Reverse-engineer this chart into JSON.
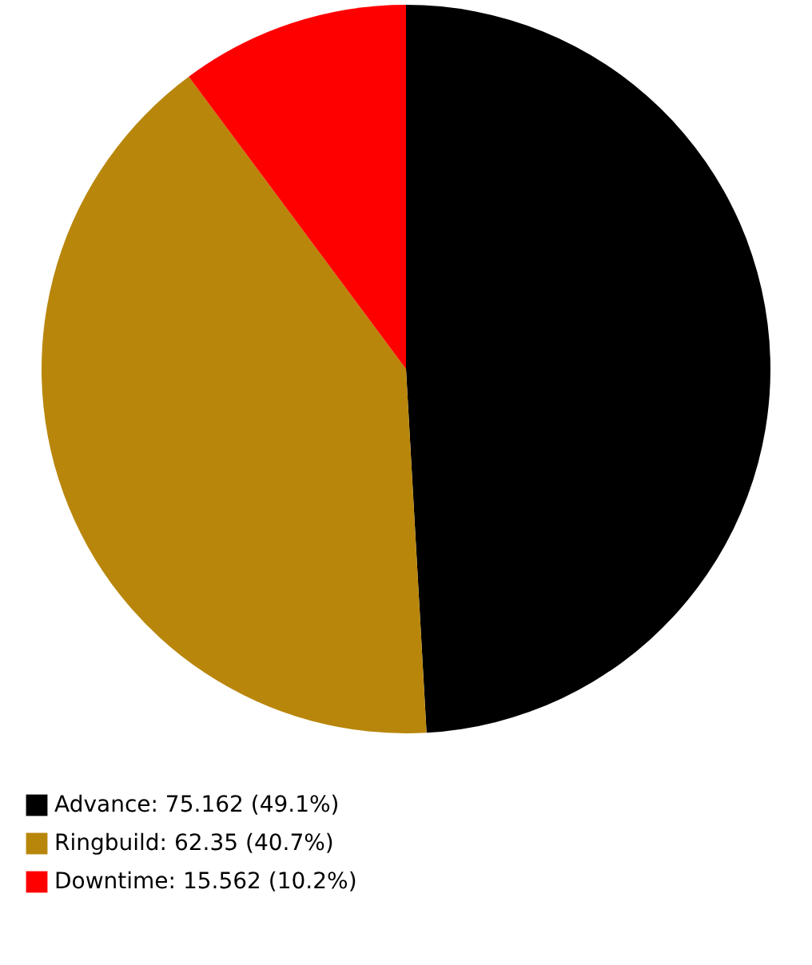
{
  "chart_data": {
    "type": "pie",
    "categories": [
      "Advance",
      "Ringbuild",
      "Downtime"
    ],
    "values": [
      75.162,
      62.35,
      15.562
    ],
    "value_labels": [
      "75.162 (49.1%)",
      "62.35 (40.7%)",
      "15.562 (10.2%)"
    ],
    "colors": [
      "#000000",
      "#b8860b",
      "#ff0000"
    ],
    "legend": "bottom left"
  }
}
